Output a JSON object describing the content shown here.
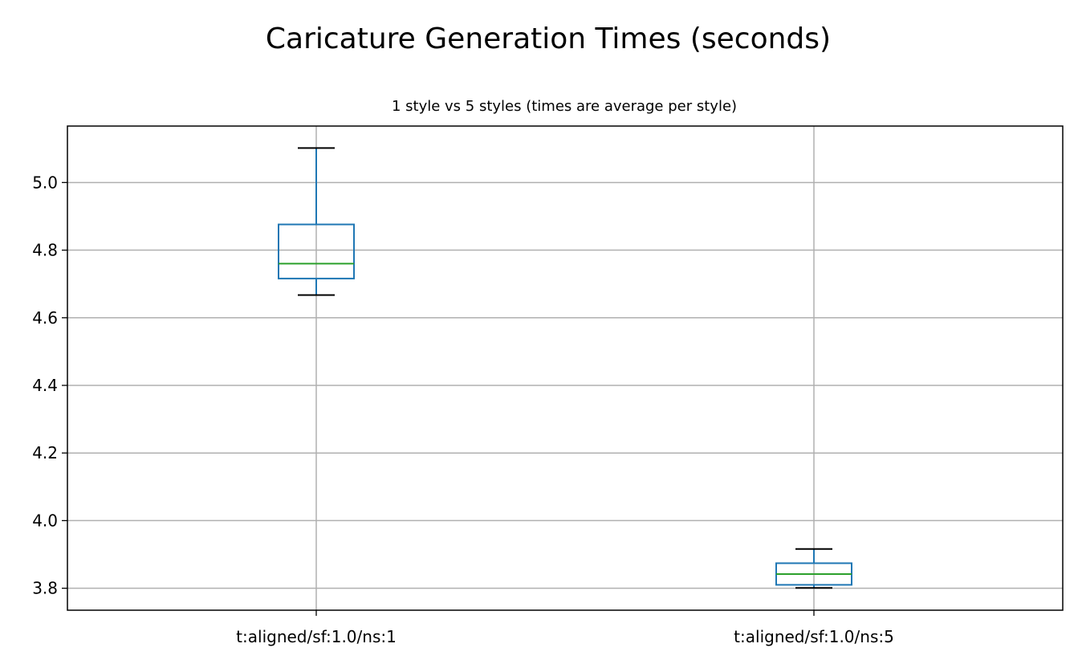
{
  "chart_data": {
    "type": "box",
    "title": "Caricature Generation Times (seconds)",
    "subtitle": "1 style vs 5 styles (times are average per style)",
    "xlabel": "",
    "ylabel": "",
    "ylim": [
      3.735,
      5.167
    ],
    "yticks": [
      "3.8",
      "4.0",
      "4.2",
      "4.4",
      "4.6",
      "4.8",
      "5.0"
    ],
    "grid": true,
    "categories": [
      "t:aligned/sf:1.0/ns:1",
      "t:aligned/sf:1.0/ns:5"
    ],
    "boxes": [
      {
        "whisker_low": 4.667,
        "q1": 4.716,
        "median": 4.76,
        "q3": 4.876,
        "whisker_high": 5.102
      },
      {
        "whisker_low": 3.801,
        "q1": 3.81,
        "median": 3.842,
        "q3": 3.874,
        "whisker_high": 3.916
      }
    ],
    "colors": {
      "box": "#1f77b4",
      "median": "#2ca02c",
      "cap": "#000000",
      "grid": "#b0b0b0"
    }
  }
}
